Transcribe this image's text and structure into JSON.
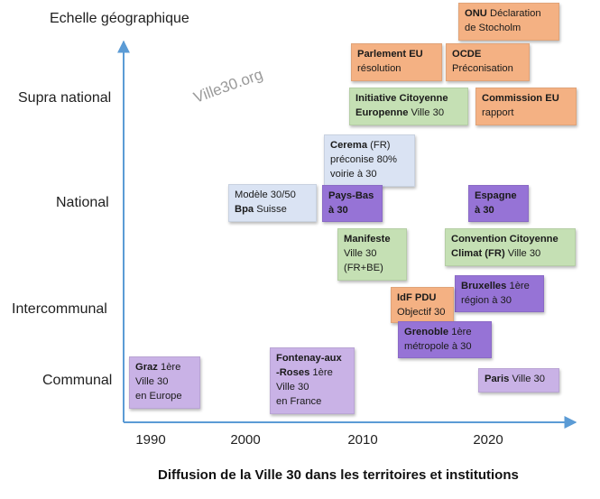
{
  "title": "Echelle géographique",
  "watermark": "Ville30.org",
  "caption": "Diffusion de la Ville 30 dans les territoires et institutions",
  "levels": [
    "Supra national",
    "National",
    "Intercommunal",
    "Communal"
  ],
  "years": [
    "1990",
    "2000",
    "2010",
    "2020"
  ],
  "colors": {
    "axis": "#5b9bd5",
    "international": "#f4b183",
    "citizen": "#c5e0b4",
    "swiss_fr_research": "#dae3f3",
    "adopter_dark": "#9673d6",
    "adopter_light": "#c9b2e6"
  },
  "boxes": {
    "onu": {
      "bold": "ONU",
      "rest1": " Déclaration",
      "line2": "de Stocholm"
    },
    "parlement": {
      "bold": "Parlement EU",
      "line2": "résolution"
    },
    "ocde": {
      "bold": "OCDE",
      "line2": "Préconisation"
    },
    "initiative": {
      "bold1": "Initiative Citoyenne",
      "bold2": "Europenne",
      "rest2": " Ville 30"
    },
    "commission": {
      "bold": "Commission EU",
      "line2": "rapport"
    },
    "cerema": {
      "bold": "Cerema",
      "rest1": " (FR)",
      "line2": "préconise 80%",
      "line3": "voirie à 30"
    },
    "modele": {
      "line1": "Modèle 30/50",
      "bold": "Bpa",
      "rest2": " Suisse"
    },
    "paysbas": {
      "bold1": "Pays-Bas",
      "bold2": "à 30"
    },
    "espagne": {
      "bold1": "Espagne",
      "bold2": "à 30"
    },
    "manifeste": {
      "bold": "Manifeste",
      "line2": "Ville 30",
      "line3": "(FR+BE)"
    },
    "convention": {
      "bold1": "Convention Citoyenne",
      "bold2": "Climat (FR)",
      "rest2": " Ville 30"
    },
    "bruxelles": {
      "bold": "Bruxelles",
      "rest1": " 1ère",
      "line2": "région à 30"
    },
    "idf": {
      "bold": "IdF PDU",
      "line2": "Objectif 30"
    },
    "grenoble": {
      "bold": "Grenoble",
      "rest1": " 1ère",
      "line2": "métropole à 30"
    },
    "graz": {
      "bold": "Graz",
      "rest1": " 1ère",
      "line2": "Ville 30",
      "line3": "en Europe"
    },
    "fontenay": {
      "bold1": "Fontenay-aux",
      "bold2": "-Roses",
      "rest2": " 1ère",
      "line3": "Ville 30",
      "line4": "en France"
    },
    "paris": {
      "bold": "Paris",
      "rest1": " Ville 30"
    }
  }
}
